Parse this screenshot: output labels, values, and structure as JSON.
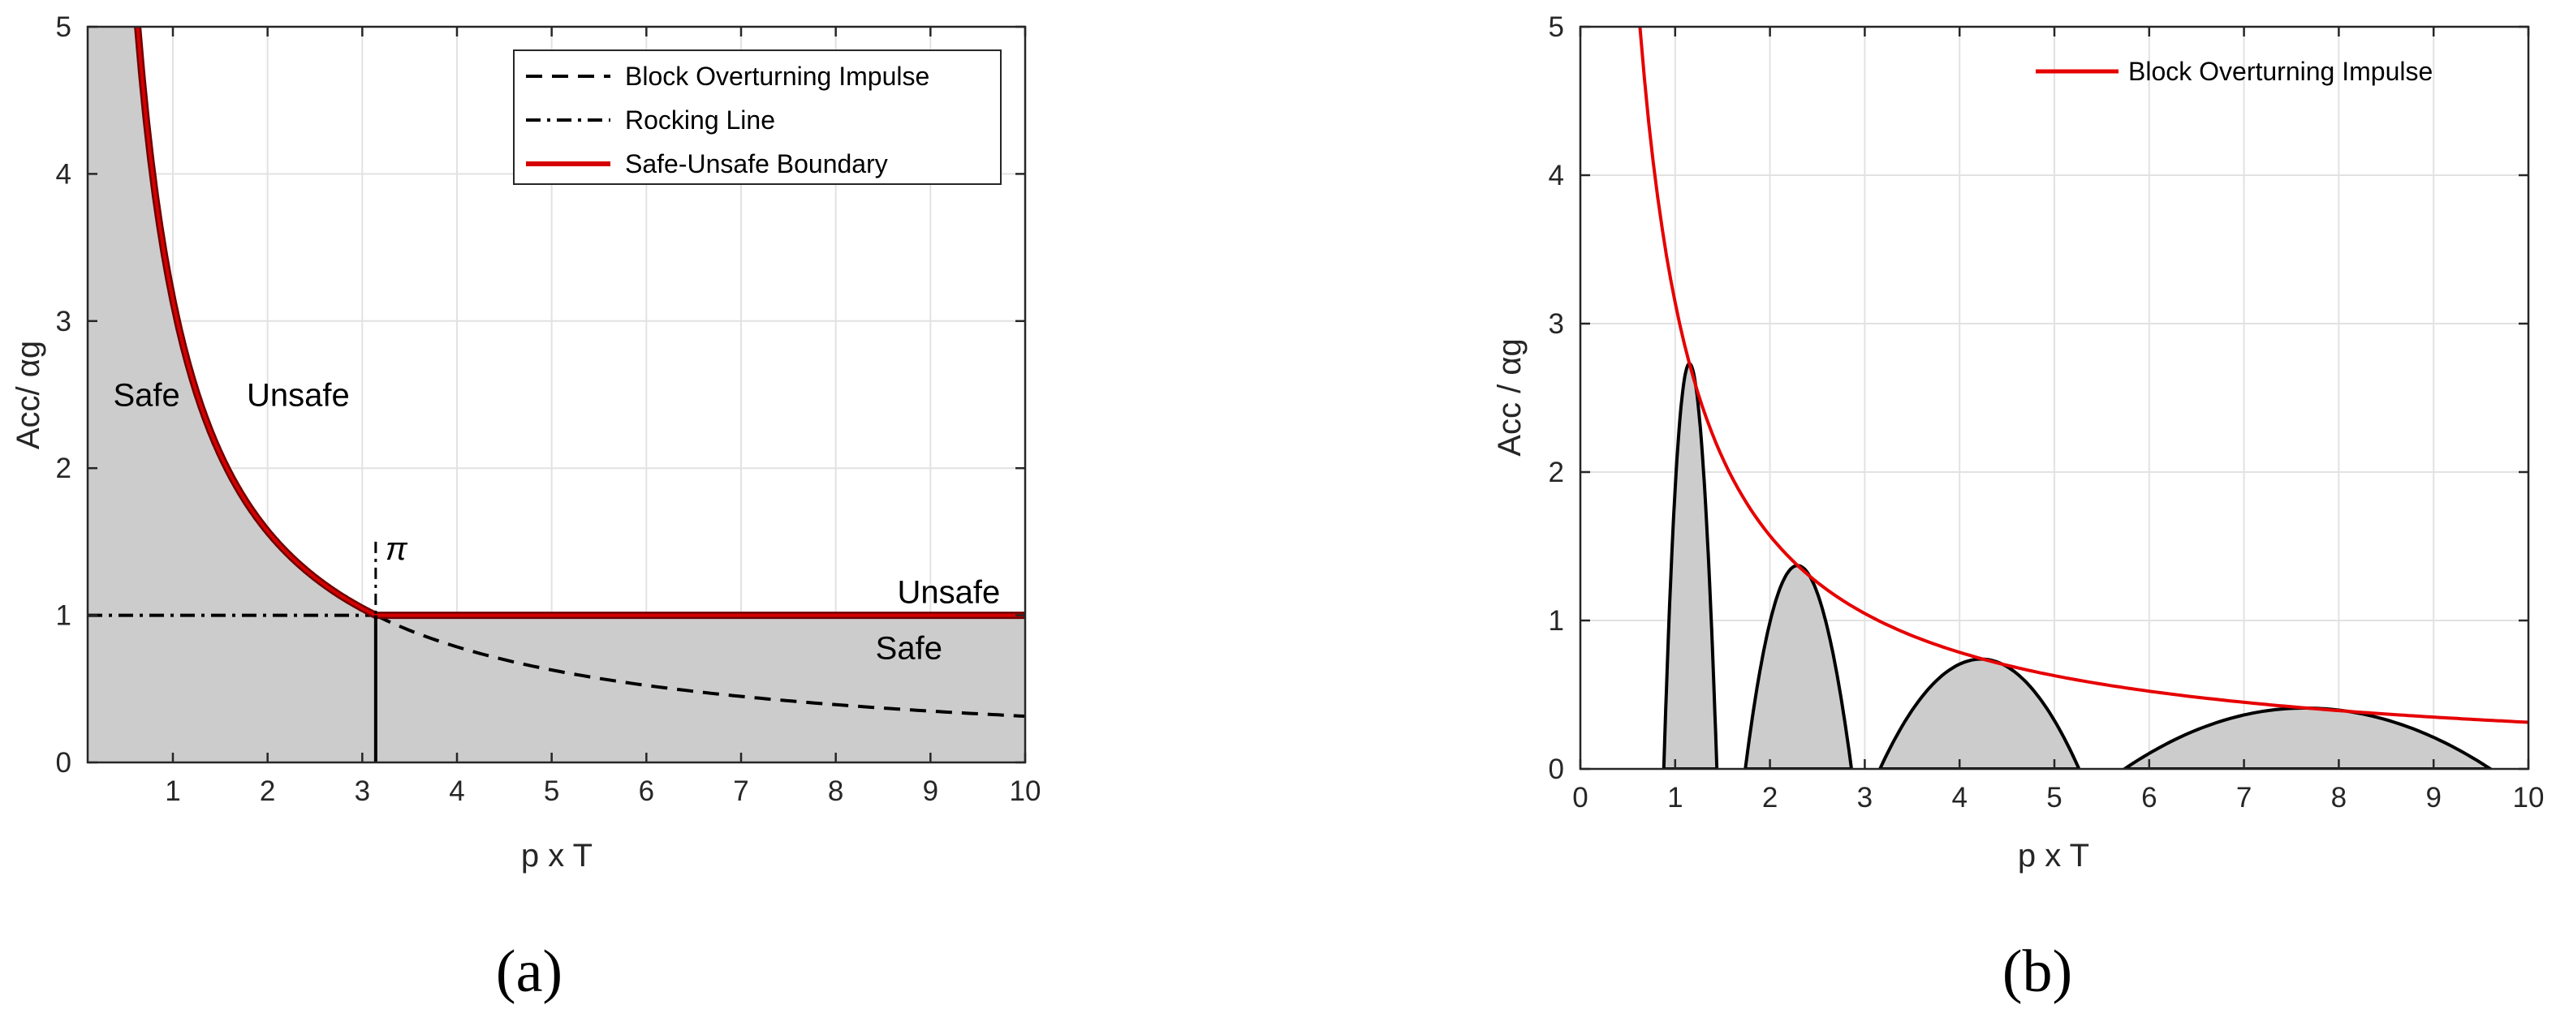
{
  "colors": {
    "safe_fill": "#cccccc",
    "boundary_red": "#d40000",
    "boundary_dark": "#6e0000",
    "grid": "#e2e2e2",
    "axis": "#262626"
  },
  "chart_data": [
    {
      "type": "area",
      "panel_label": "(a)",
      "xlabel": "p x T",
      "ylabel": "Acc/ αg",
      "xlim": [
        0.1,
        10
      ],
      "ylim": [
        0,
        5
      ],
      "xticks": [
        1,
        2,
        3,
        4,
        5,
        6,
        7,
        8,
        9,
        10
      ],
      "yticks": [
        0,
        1,
        2,
        3,
        4,
        5
      ],
      "grid": true,
      "legend_position": "top-right",
      "series": [
        {
          "name": "Block Overturning Impulse",
          "style": "dashed",
          "formula": "pi / (pT)",
          "x": [
            0.63,
            1,
            2,
            3.14,
            4,
            5,
            6,
            7,
            8,
            9,
            10
          ],
          "y": [
            4.99,
            3.14,
            1.57,
            1.0,
            0.79,
            0.63,
            0.52,
            0.45,
            0.39,
            0.35,
            0.31
          ]
        },
        {
          "name": "Rocking Line",
          "style": "dash-dot",
          "x": [
            0.1,
            3.14
          ],
          "y": [
            1,
            1
          ]
        },
        {
          "name": "Safe-Unsafe Boundary",
          "style": "solid",
          "x": [
            0.63,
            1,
            2,
            3.14,
            10
          ],
          "y": [
            4.99,
            3.14,
            1.57,
            1.0,
            1.0
          ]
        }
      ],
      "vertical_marker": {
        "x": 3.14159,
        "label": "π"
      },
      "annotations": [
        {
          "text": "Safe",
          "x": 0.37,
          "y": 2.5
        },
        {
          "text": "Unsafe",
          "x": 1.78,
          "y": 2.5
        },
        {
          "text": "Unsafe",
          "x": 8.65,
          "y": 1.16
        },
        {
          "text": "Safe",
          "x": 8.42,
          "y": 0.78
        }
      ]
    },
    {
      "type": "area",
      "panel_label": "(b)",
      "xlabel": "p x T",
      "ylabel": "Acc / αg",
      "xlim": [
        0,
        10
      ],
      "ylim": [
        0,
        5
      ],
      "xticks": [
        0,
        1,
        2,
        3,
        4,
        5,
        6,
        7,
        8,
        9,
        10
      ],
      "yticks": [
        0,
        1,
        2,
        3,
        4,
        5
      ],
      "grid": true,
      "legend_position": "top-right",
      "series": [
        {
          "name": "Block Overturning Impulse",
          "style": "solid",
          "formula": "pi / (pT)",
          "x": [
            0.63,
            1,
            1.15,
            2,
            2.29,
            3,
            4.23,
            5,
            6,
            7,
            7.64,
            8,
            9,
            10
          ],
          "y": [
            4.99,
            3.14,
            2.73,
            1.57,
            1.37,
            1.05,
            0.74,
            0.63,
            0.52,
            0.45,
            0.41,
            0.39,
            0.35,
            0.31
          ]
        }
      ],
      "lobes": [
        {
          "x_start": 0.88,
          "x_end": 1.44,
          "peak_x": 1.15,
          "peak_y": 2.73
        },
        {
          "x_start": 1.74,
          "x_end": 2.86,
          "peak_x": 2.29,
          "peak_y": 1.37
        },
        {
          "x_start": 3.16,
          "x_end": 5.26,
          "peak_x": 4.23,
          "peak_y": 0.74
        },
        {
          "x_start": 5.74,
          "x_end": 9.6,
          "peak_x": 7.64,
          "peak_y": 0.41
        }
      ]
    }
  ]
}
